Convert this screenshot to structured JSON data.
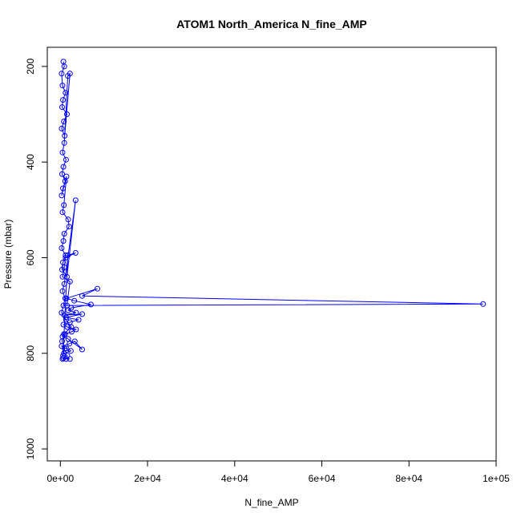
{
  "chart_data": {
    "type": "line",
    "title": "ATOM1 North_America N_fine_AMP",
    "xlabel": "N_fine_AMP",
    "ylabel": "Pressure (mbar)",
    "xlim": [
      -3000,
      100000
    ],
    "ylim": [
      1025,
      160
    ],
    "y_reversed": true,
    "grid": false,
    "x_ticks": [
      0,
      20000,
      40000,
      60000,
      80000,
      100000
    ],
    "x_tick_labels": [
      "0e+00",
      "2e+04",
      "4e+04",
      "6e+04",
      "8e+04",
      "1e+05"
    ],
    "y_ticks": [
      200,
      400,
      600,
      800,
      1000
    ],
    "y_tick_labels": [
      "200",
      "400",
      "600",
      "800",
      "1000"
    ],
    "colors": {
      "series": "#0000ff"
    },
    "series": [
      {
        "x": [
          700,
          900,
          300,
          500,
          1200,
          600,
          400,
          1500,
          800,
          300,
          1000,
          2200,
          1700,
          900,
          500,
          1300,
          700,
          400,
          1100,
          600,
          300,
          1400,
          800,
          500,
          1800,
          2000,
          900,
          700,
          300,
          1200,
          600,
          400,
          1500,
          3500,
          900,
          500,
          1100,
          700,
          300,
          1300,
          2500,
          800,
          400,
          1000,
          600,
          1700,
          3500,
          1200,
          900,
          500,
          2200,
          1500,
          97000,
          5000,
          8500,
          1400,
          3200,
          7000,
          2500,
          1800,
          3600,
          900,
          5000,
          1300,
          4200,
          2200,
          700,
          1600,
          3600,
          2600,
          1100,
          500,
          1800,
          5000,
          3300,
          2100,
          300,
          1400,
          2400,
          800,
          1600,
          700,
          2200,
          1300,
          500
        ],
        "y": [
          190,
          200,
          215,
          240,
          255,
          270,
          285,
          300,
          315,
          330,
          345,
          215,
          220,
          360,
          380,
          395,
          410,
          425,
          440,
          455,
          470,
          430,
          490,
          505,
          520,
          535,
          550,
          565,
          580,
          595,
          610,
          625,
          640,
          480,
          655,
          670,
          685,
          700,
          715,
          730,
          745,
          760,
          775,
          790,
          805,
          595,
          590,
          600,
          620,
          640,
          650,
          700,
          697,
          680,
          665,
          685,
          690,
          698,
          705,
          710,
          715,
          720,
          718,
          725,
          730,
          735,
          740,
          745,
          750,
          755,
          760,
          765,
          770,
          792,
          775,
          780,
          785,
          790,
          795,
          800,
          805,
          810,
          812,
          812,
          812
        ]
      }
    ]
  }
}
